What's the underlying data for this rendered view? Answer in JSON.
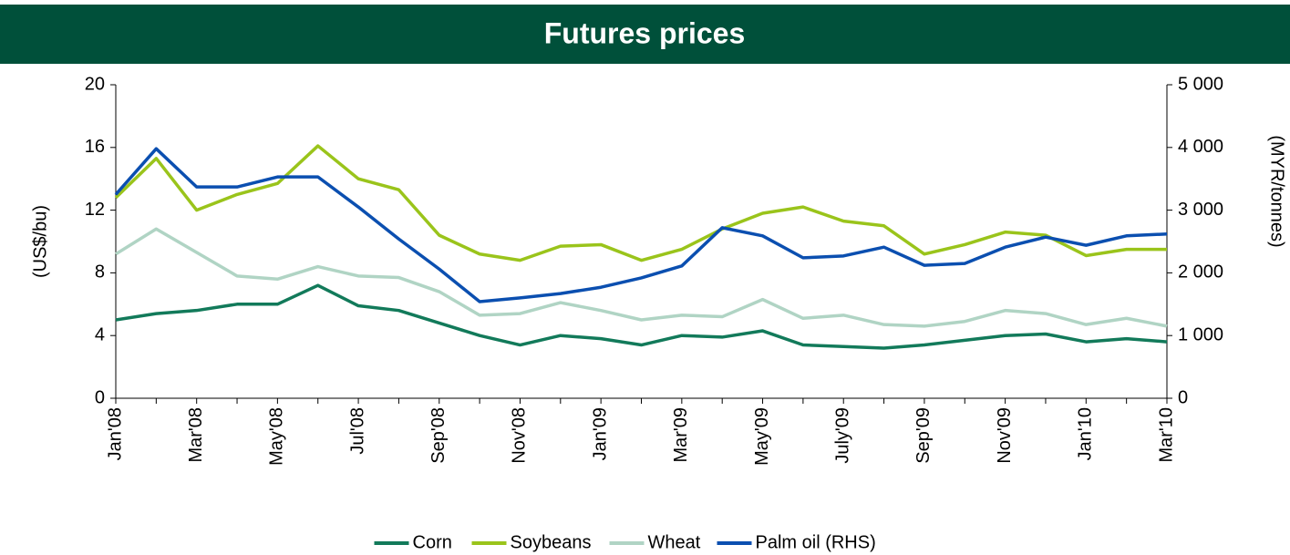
{
  "chart_data": {
    "type": "line",
    "title": "Futures prices",
    "y_label": "(US$/bu)",
    "y2_label": "(MYR/tonnes)",
    "categories": [
      "Jan'08",
      null,
      "Mar'08",
      null,
      "May'08",
      null,
      "Jul'08",
      null,
      "Sep'08",
      null,
      "Nov'08",
      null,
      "Jan'09",
      null,
      "Mar'09",
      null,
      "May'09",
      null,
      "July'09",
      null,
      "Sep'09",
      null,
      "Nov'09",
      null,
      "Jan'10",
      null,
      "Mar'10"
    ],
    "series": [
      {
        "name": "Corn",
        "color": "#127a5a",
        "values": [
          5.0,
          5.4,
          5.6,
          6.0,
          6.0,
          7.2,
          5.9,
          5.6,
          4.8,
          4.0,
          3.4,
          4.0,
          3.8,
          3.4,
          4.0,
          3.9,
          4.3,
          3.4,
          3.3,
          3.2,
          3.4,
          3.7,
          4.0,
          4.1,
          3.6,
          3.8,
          3.6
        ]
      },
      {
        "name": "Soybeans",
        "color": "#9ac41b",
        "values": [
          12.8,
          15.3,
          12.0,
          13.0,
          13.7,
          16.1,
          14.0,
          13.3,
          10.4,
          9.2,
          8.8,
          9.7,
          9.8,
          8.8,
          9.5,
          10.8,
          11.8,
          12.2,
          11.3,
          11.0,
          9.2,
          9.8,
          10.6,
          10.4,
          9.1,
          9.5,
          9.5
        ]
      },
      {
        "name": "Wheat",
        "color": "#b0d4c4",
        "values": [
          9.2,
          10.8,
          9.3,
          7.8,
          7.6,
          8.4,
          7.8,
          7.7,
          6.8,
          5.3,
          5.4,
          6.1,
          5.6,
          5.0,
          5.3,
          5.2,
          6.3,
          5.1,
          5.3,
          4.7,
          4.6,
          4.9,
          5.6,
          5.4,
          4.7,
          5.1,
          4.6
        ]
      },
      {
        "name": "Palm oil (RHS)",
        "color": "#0b4fb0",
        "axis": "y2",
        "values": [
          3250,
          3980,
          3370,
          3370,
          3530,
          3530,
          3050,
          2540,
          2060,
          1540,
          1600,
          1670,
          1770,
          1920,
          2110,
          2720,
          2590,
          2240,
          2270,
          2410,
          2120,
          2150,
          2410,
          2570,
          2440,
          2590,
          2620
        ]
      }
    ],
    "ylim": [
      0,
      20
    ],
    "yticks": [
      0,
      4,
      8,
      12,
      16,
      20
    ],
    "y2lim": [
      0,
      5000
    ],
    "y2ticks": [
      0,
      {
        "value": 1000,
        "label": "1 000"
      },
      {
        "value": 2000,
        "label": "2 000"
      },
      {
        "value": 3000,
        "label": "3 000"
      },
      {
        "value": 4000,
        "label": "4 000"
      },
      {
        "value": 5000,
        "label": "5 000"
      }
    ],
    "legend": "bottom"
  }
}
